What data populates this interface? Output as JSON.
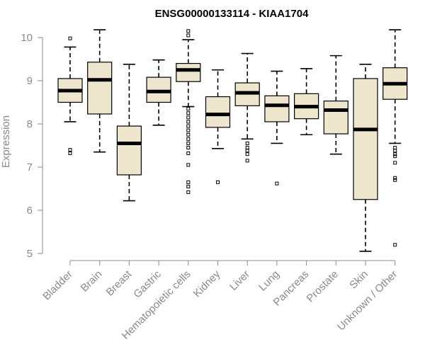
{
  "chart_data": {
    "type": "boxplot",
    "title": "ENSG00000133114 - KIAA1704",
    "xlabel": "",
    "ylabel": "Expression",
    "ylim": [
      5,
      10
    ],
    "yticks": [
      5,
      6,
      7,
      8,
      9,
      10
    ],
    "grid": false,
    "box_fill": "#ede6cc",
    "categories": [
      "Bladder",
      "Brain",
      "Breast",
      "Gastric",
      "Hematopoietic cells",
      "Kidney",
      "Liver",
      "Lung",
      "Pancreas",
      "Prostate",
      "Skin",
      "Unknown / Other"
    ],
    "boxes": [
      {
        "name": "Bladder",
        "whisker_low": 8.05,
        "q1": 8.5,
        "median": 8.77,
        "q3": 9.05,
        "whisker_high": 9.78,
        "outliers": [
          9.98,
          7.4,
          7.32
        ]
      },
      {
        "name": "Brain",
        "whisker_low": 7.35,
        "q1": 8.23,
        "median": 9.02,
        "q3": 9.43,
        "whisker_high": 10.18,
        "outliers": []
      },
      {
        "name": "Breast",
        "whisker_low": 6.22,
        "q1": 6.82,
        "median": 7.55,
        "q3": 7.95,
        "whisker_high": 9.38,
        "outliers": []
      },
      {
        "name": "Gastric",
        "whisker_low": 7.97,
        "q1": 8.5,
        "median": 8.75,
        "q3": 9.08,
        "whisker_high": 9.48,
        "outliers": []
      },
      {
        "name": "Hematopoietic cells",
        "whisker_low": 8.4,
        "q1": 8.98,
        "median": 9.25,
        "q3": 9.4,
        "whisker_high": 9.95,
        "outliers": [
          10.15,
          10.05,
          8.35,
          8.25,
          8.15,
          8.05,
          7.95,
          7.85,
          7.75,
          7.65,
          7.55,
          7.45,
          7.32,
          7.05,
          6.65,
          6.55,
          6.42
        ]
      },
      {
        "name": "Kidney",
        "whisker_low": 7.43,
        "q1": 7.92,
        "median": 8.22,
        "q3": 8.63,
        "whisker_high": 9.25,
        "outliers": [
          6.65
        ]
      },
      {
        "name": "Liver",
        "whisker_low": 7.65,
        "q1": 8.42,
        "median": 8.72,
        "q3": 8.95,
        "whisker_high": 9.63,
        "outliers": [
          7.55,
          7.45,
          7.38,
          7.3,
          7.15
        ]
      },
      {
        "name": "Lung",
        "whisker_low": 7.55,
        "q1": 8.05,
        "median": 8.43,
        "q3": 8.65,
        "whisker_high": 9.22,
        "outliers": [
          6.62
        ]
      },
      {
        "name": "Pancreas",
        "whisker_low": 7.75,
        "q1": 8.12,
        "median": 8.4,
        "q3": 8.7,
        "whisker_high": 9.28,
        "outliers": []
      },
      {
        "name": "Prostate",
        "whisker_low": 7.3,
        "q1": 7.77,
        "median": 8.32,
        "q3": 8.53,
        "whisker_high": 9.58,
        "outliers": []
      },
      {
        "name": "Skin",
        "whisker_low": 5.05,
        "q1": 6.25,
        "median": 7.87,
        "q3": 9.05,
        "whisker_high": 9.38,
        "outliers": []
      },
      {
        "name": "Unknown / Other",
        "whisker_low": 7.55,
        "q1": 8.57,
        "median": 8.93,
        "q3": 9.3,
        "whisker_high": 10.18,
        "outliers": [
          7.45,
          7.38,
          7.3,
          7.25,
          7.1,
          6.75,
          6.7,
          5.2
        ]
      }
    ]
  }
}
